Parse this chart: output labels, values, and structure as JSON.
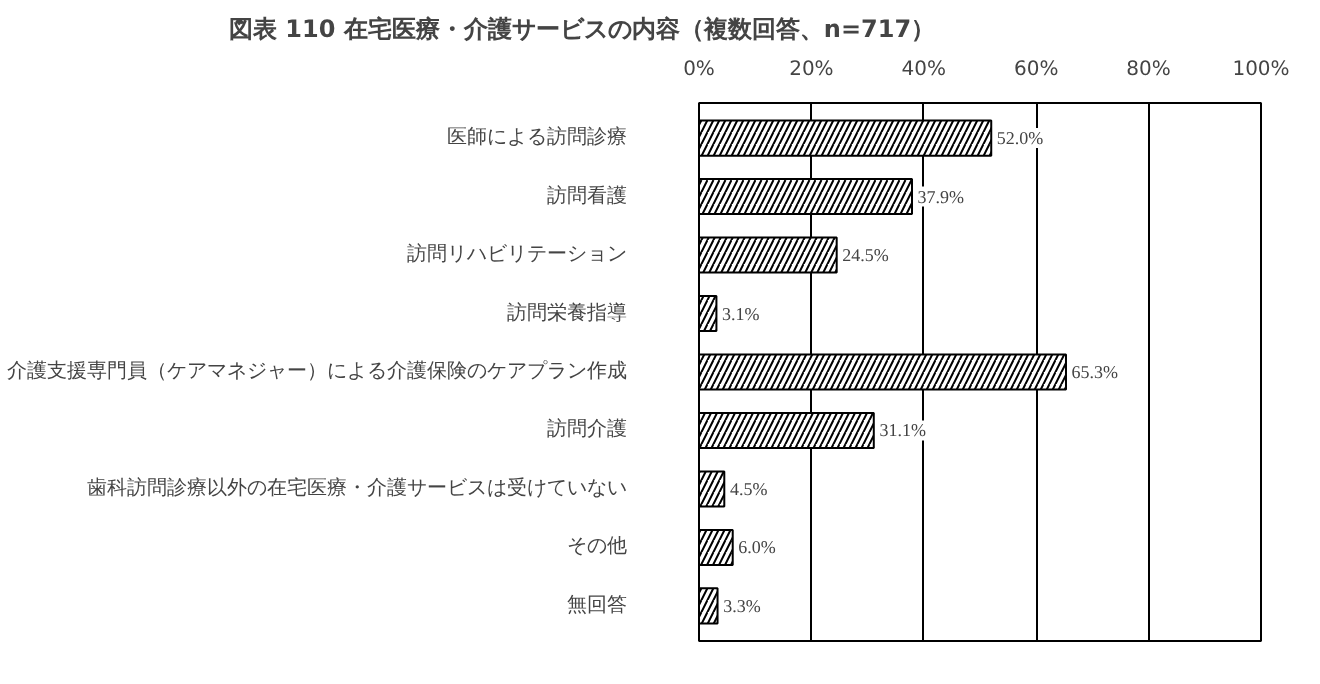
{
  "chart_data": {
    "type": "bar",
    "orientation": "horizontal",
    "title": "図表 110 在宅医療・介護サービスの内容（複数回答、n=717）",
    "categories": [
      "医師による訪問診療",
      "訪問看護",
      "訪問リハビリテーション",
      "訪問栄養指導",
      "介護支援専門員（ケアマネジャー）による介護保険のケアプラン作成",
      "訪問介護",
      "歯科訪問診療以外の在宅医療・介護サービスは受けていない",
      "その他",
      "無回答"
    ],
    "values": [
      52.0,
      37.9,
      24.5,
      3.1,
      65.3,
      31.1,
      4.5,
      6.0,
      3.3
    ],
    "value_labels": [
      "52.0%",
      "37.9%",
      "24.5%",
      "3.1%",
      "65.3%",
      "31.1%",
      "4.5%",
      "6.0%",
      "3.3%"
    ],
    "color": "#ffffff",
    "xlim": [
      0,
      100
    ],
    "xticks": [
      {
        "value": 0,
        "label": "0%"
      },
      {
        "value": 20,
        "label": "20%"
      },
      {
        "value": 40,
        "label": "40%"
      },
      {
        "value": 60,
        "label": "60%"
      },
      {
        "value": 80,
        "label": "80%"
      },
      {
        "value": 100,
        "label": "100%"
      }
    ],
    "grid": "x"
  }
}
